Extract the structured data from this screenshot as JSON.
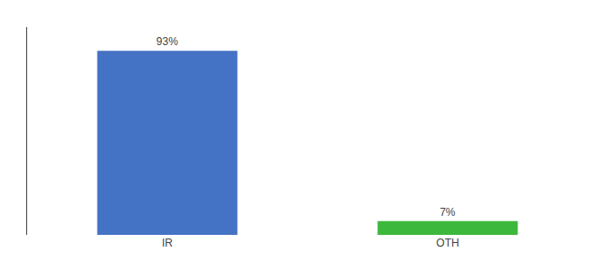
{
  "chart_data": {
    "type": "bar",
    "categories": [
      "IR",
      "OTH"
    ],
    "values": [
      93,
      7
    ],
    "value_labels": [
      "93%",
      "7%"
    ],
    "data_labels": true,
    "colors": [
      "#4472c4",
      "#3cb83c"
    ],
    "ylim": [
      0,
      105
    ],
    "tick_labels": "x",
    "grid": false
  }
}
